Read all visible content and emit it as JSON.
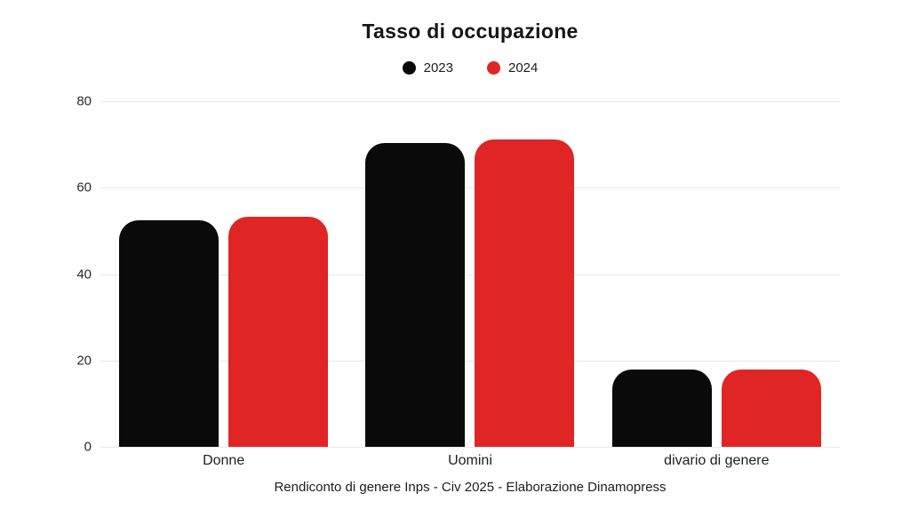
{
  "chart": {
    "title": "Tasso di occupazione",
    "caption": "Rendiconto di genere Inps - Civ 2025 - Elaborazione Dinamopress"
  },
  "chart_data": {
    "type": "bar",
    "title": "Tasso di occupazione",
    "categories": [
      "Donne",
      "Uomini",
      "divario di genere"
    ],
    "series": [
      {
        "name": "2023",
        "color": "#0a0a0a",
        "values": [
          52.5,
          70.4,
          17.9
        ]
      },
      {
        "name": "2024",
        "color": "#e02525",
        "values": [
          53.3,
          71.1,
          17.8
        ]
      }
    ],
    "ylim": [
      0,
      80
    ],
    "yticks": [
      "80",
      "60",
      "40",
      "20",
      "0"
    ],
    "grid": "horizontal",
    "legend_position": "top",
    "background": "#ffffff",
    "caption": "Rendiconto di genere Inps - Civ 2025 - Elaborazione Dinamopress"
  }
}
